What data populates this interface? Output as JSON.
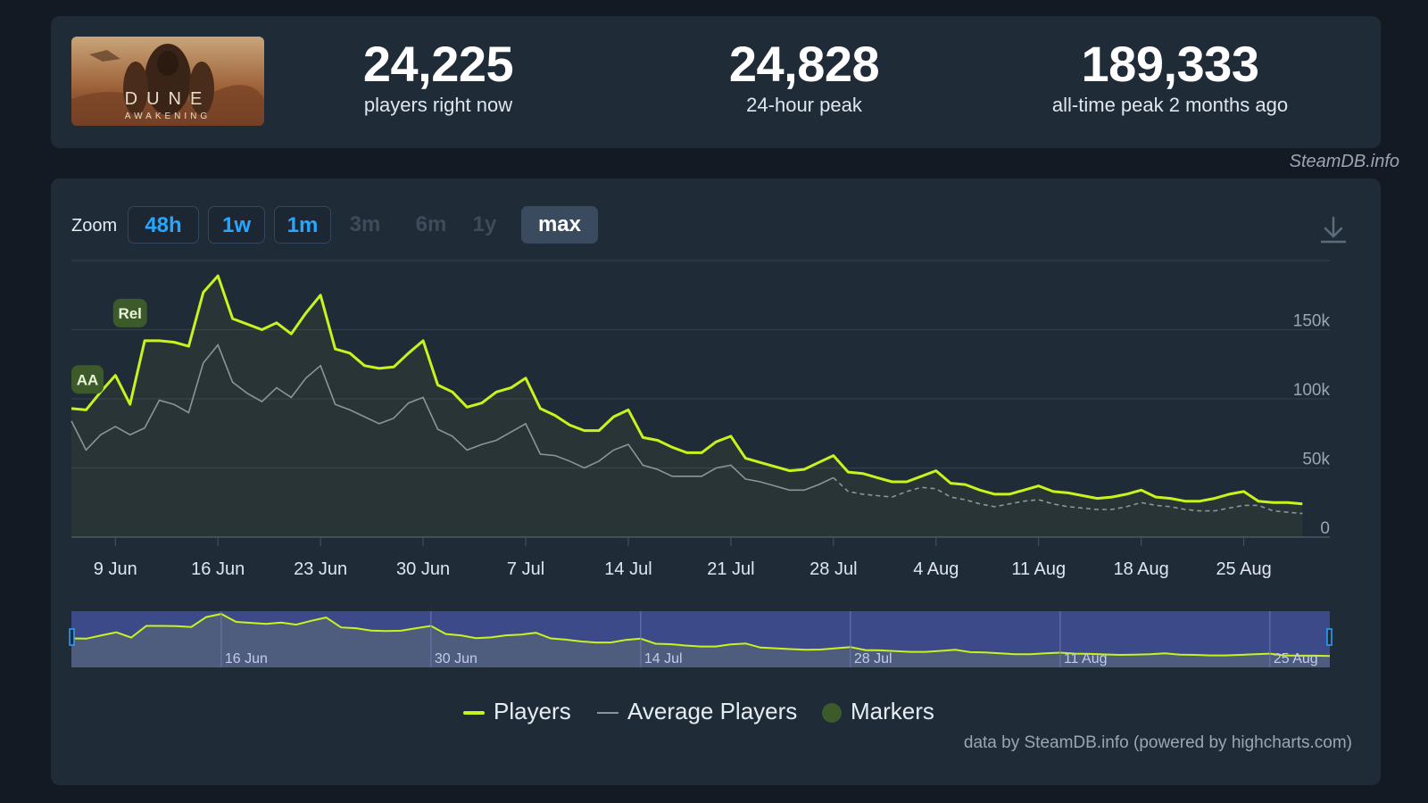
{
  "stats": [
    {
      "value": "24,225",
      "label": "players right now"
    },
    {
      "value": "24,828",
      "label": "24-hour peak"
    },
    {
      "value": "189,333",
      "label": "all-time peak 2 months ago"
    }
  ],
  "game_logo": {
    "line1": "DUNE",
    "line2": "AWAKENING"
  },
  "credit_top": "SteamDB.info",
  "zoom": {
    "label": "Zoom",
    "options": [
      {
        "label": "48h",
        "state": "active"
      },
      {
        "label": "1w",
        "state": "active"
      },
      {
        "label": "1m",
        "state": "active"
      },
      {
        "label": "3m",
        "state": "disabled"
      },
      {
        "label": "6m",
        "state": "disabled"
      },
      {
        "label": "1y",
        "state": "disabled"
      },
      {
        "label": "max",
        "state": "selected"
      }
    ]
  },
  "legend": {
    "players": "Players",
    "average": "Average Players",
    "markers": "Markers"
  },
  "footer_credit": "data by SteamDB.info (powered by highcharts.com)",
  "colors": {
    "players": "#c8f31d",
    "average": "#8b949e",
    "marker": "#3d5a2a",
    "accent": "#27a6ff"
  },
  "chart_data": {
    "type": "line",
    "x_start": "6 Jun",
    "x_step_days": 1,
    "x_end": "29 Aug",
    "ylim": [
      0,
      200000
    ],
    "y_ticks": [
      0,
      50000,
      100000,
      150000
    ],
    "y_tick_labels": [
      "0",
      "50k",
      "100k",
      "150k"
    ],
    "x_tick_labels": [
      "9 Jun",
      "16 Jun",
      "23 Jun",
      "30 Jun",
      "7 Jul",
      "14 Jul",
      "21 Jul",
      "28 Jul",
      "4 Aug",
      "11 Aug",
      "18 Aug",
      "25 Aug"
    ],
    "x_tick_offsets": [
      3,
      10,
      17,
      24,
      31,
      38,
      45,
      52,
      59,
      66,
      73,
      80
    ],
    "series": [
      {
        "name": "Players",
        "values": [
          93000,
          92000,
          105000,
          117000,
          96000,
          142000,
          142000,
          141000,
          138000,
          177000,
          189000,
          158000,
          154000,
          150000,
          155000,
          147000,
          162000,
          175000,
          136000,
          133000,
          124000,
          122000,
          123000,
          133000,
          142000,
          110000,
          105000,
          94000,
          97000,
          105000,
          108000,
          115000,
          93000,
          88000,
          81000,
          77000,
          77000,
          87000,
          92000,
          72000,
          70000,
          65000,
          61000,
          61000,
          69000,
          73000,
          57000,
          54000,
          51000,
          48000,
          49000,
          54000,
          59000,
          47000,
          46000,
          43000,
          40000,
          40000,
          44000,
          48000,
          39000,
          38000,
          34000,
          31000,
          31000,
          34000,
          37000,
          33000,
          32000,
          30000,
          28000,
          29000,
          31000,
          34000,
          29000,
          28000,
          26000,
          26000,
          28000,
          31000,
          33000,
          26000,
          25000,
          25000,
          24000
        ]
      },
      {
        "name": "Average Players",
        "values": [
          84000,
          63000,
          74000,
          80000,
          74000,
          79000,
          99000,
          96000,
          90000,
          126000,
          139000,
          112000,
          104000,
          98000,
          108000,
          101000,
          115000,
          124000,
          96000,
          92000,
          87000,
          82000,
          86000,
          97000,
          101000,
          78000,
          73000,
          63000,
          67000,
          70000,
          76000,
          82000,
          60000,
          59000,
          55000,
          50000,
          55000,
          63000,
          67000,
          52000,
          49000,
          44000,
          44000,
          44000,
          50000,
          52000,
          42000,
          40000,
          37000,
          34000,
          34000,
          38000,
          43000,
          33000,
          31000,
          30000,
          29000,
          33000,
          36000,
          35000,
          29000,
          27000,
          24000,
          22000,
          24000,
          26000,
          27000,
          24000,
          22000,
          21000,
          20000,
          20000,
          22000,
          25000,
          23000,
          22000,
          20000,
          19000,
          19000,
          21000,
          23000,
          23000,
          19000,
          18000,
          17000
        ]
      }
    ],
    "markers": [
      {
        "label": "AA",
        "x_offset": 0,
        "y_value": 114000
      },
      {
        "label": "Rel",
        "x_offset": 4,
        "y_value": 162000
      }
    ],
    "navigator": {
      "labels": [
        "16 Jun",
        "30 Jun",
        "14 Jul",
        "28 Jul",
        "11 Aug",
        "25 Aug"
      ],
      "label_offsets": [
        10,
        24,
        38,
        52,
        66,
        80
      ]
    }
  }
}
